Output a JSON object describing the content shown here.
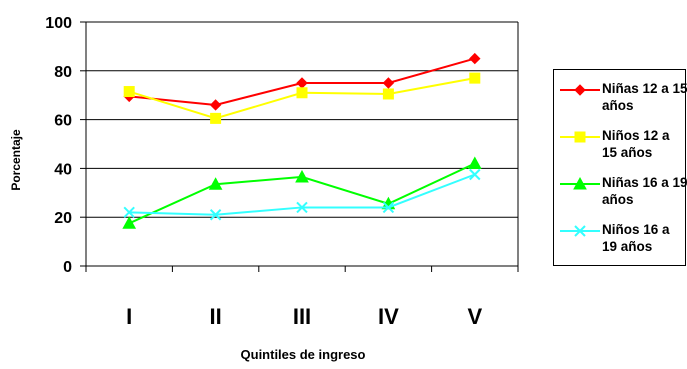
{
  "chart_data": {
    "type": "line",
    "categories": [
      "I",
      "II",
      "III",
      "IV",
      "V"
    ],
    "xlabel": "Quintiles de ingreso",
    "ylabel": "Porcentaje",
    "ylim": [
      0,
      100
    ],
    "yticks": [
      "0",
      "20",
      "40",
      "60",
      "80",
      "100"
    ],
    "grid": true,
    "legend_position": "right",
    "series": [
      {
        "name": "Niñas 12 a 15 años",
        "values": [
          69.5,
          66,
          75,
          75,
          85
        ],
        "color": "#ff0000",
        "marker": "diamond"
      },
      {
        "name": "Niños 12 a 15 años",
        "values": [
          71.5,
          60.5,
          71,
          70.5,
          77
        ],
        "color": "#ffff00",
        "marker": "square"
      },
      {
        "name": "Niñas 16 a 19 años",
        "values": [
          17.5,
          33.5,
          36.5,
          25.5,
          42
        ],
        "color": "#00ff00",
        "marker": "triangle"
      },
      {
        "name": "Niños 16 a 19 años",
        "values": [
          22,
          21,
          24,
          24,
          37.5
        ],
        "color": "#33ffff",
        "marker": "x"
      }
    ]
  }
}
